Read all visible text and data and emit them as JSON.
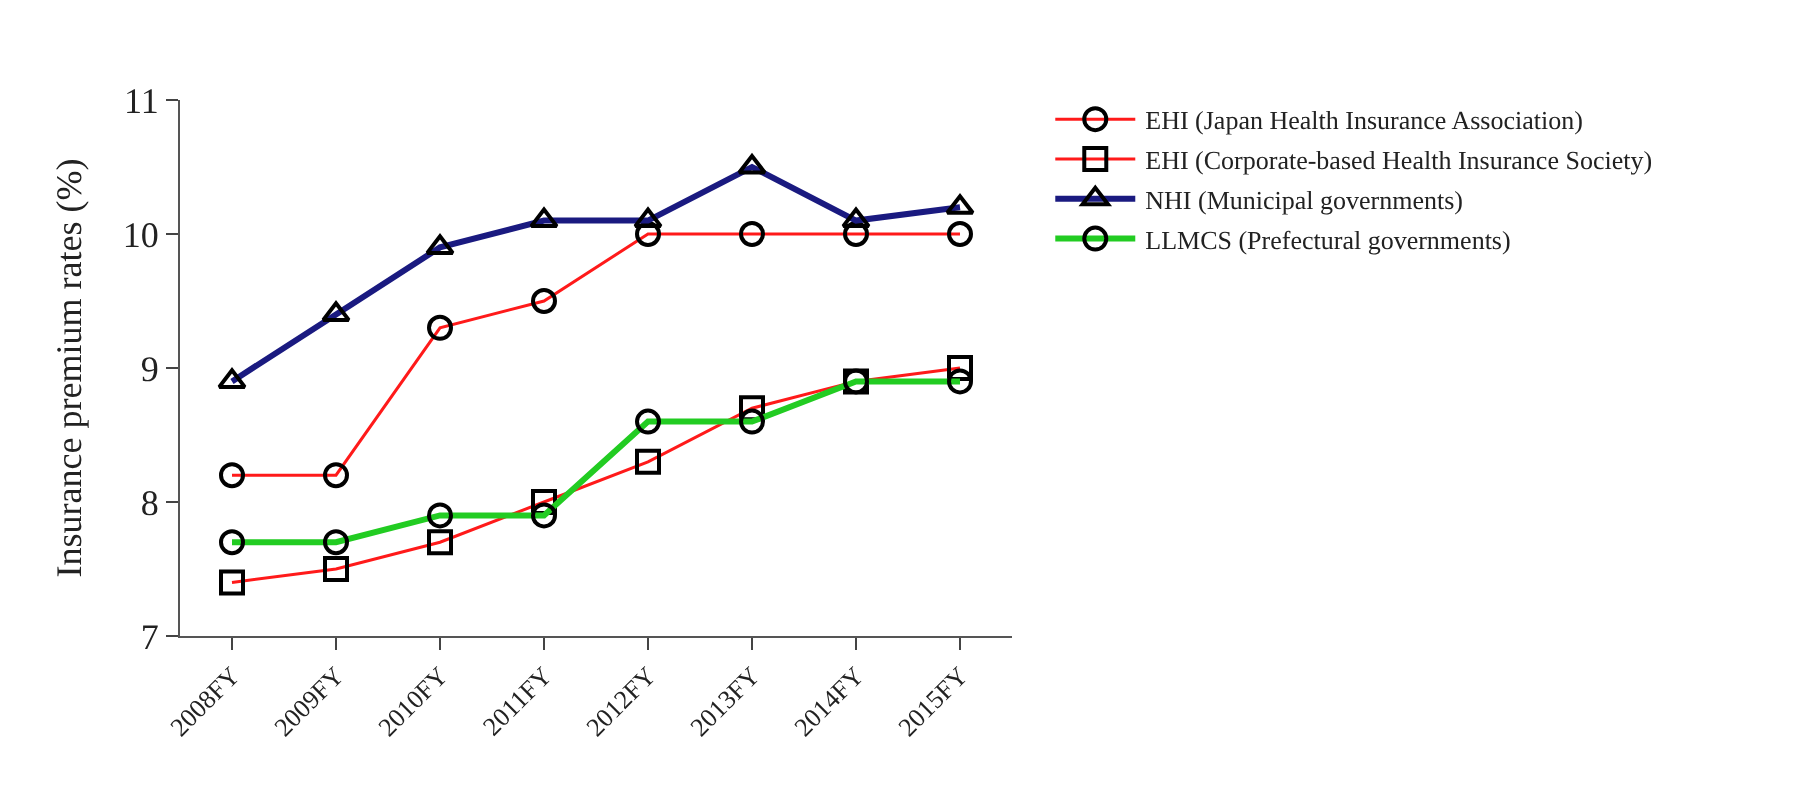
{
  "chart_data": {
    "type": "line",
    "ylabel": "Insurance premium rates (%)",
    "categories": [
      "2008FY",
      "2009FY",
      "2010FY",
      "2011FY",
      "2012FY",
      "2013FY",
      "2014FY",
      "2015FY"
    ],
    "series": [
      {
        "name": "EHI (Japan Health Insurance Association)",
        "color": "#ff1a1a",
        "marker": "circle",
        "values": [
          8.2,
          8.2,
          9.3,
          9.5,
          10,
          10,
          10,
          10
        ]
      },
      {
        "name": "EHI (Corporate-based Health Insurance Society)",
        "color": "#ff1a1a",
        "marker": "square",
        "values": [
          7.4,
          7.5,
          7.7,
          8.0,
          8.3,
          8.7,
          8.9,
          9.0
        ]
      },
      {
        "name": "NHI (Municipal governments)",
        "color": "#1a1a80",
        "marker": "triangle",
        "values": [
          8.9,
          9.4,
          9.9,
          10.1,
          10.1,
          10.5,
          10.1,
          10.2
        ]
      },
      {
        "name": "LLMCS (Prefectural governments)",
        "color": "#22cc22",
        "marker": "circle",
        "values": [
          7.7,
          7.7,
          7.9,
          7.9,
          8.6,
          8.6,
          8.9,
          8.9
        ]
      }
    ],
    "ylim": [
      7,
      11
    ],
    "yticks": [
      7,
      8,
      9,
      10,
      11
    ],
    "legend": "right",
    "line_style": "solid"
  }
}
